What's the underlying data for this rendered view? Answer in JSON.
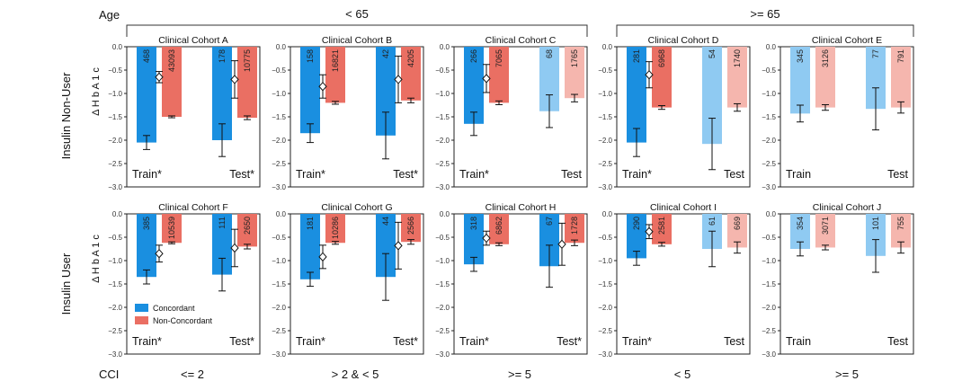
{
  "colors": {
    "concordant": "#1a8fe0",
    "concordant_faded": "#8fcaf2",
    "non_concordant": "#ea6f63",
    "non_concordant_faded": "#f5b6ae"
  },
  "chart_data": {
    "type": "bar",
    "age_label": "Age",
    "age_groups": [
      "< 65",
      ">= 65"
    ],
    "cci_label": "CCI",
    "cci_groups": [
      "<= 2",
      "> 2 & < 5",
      ">= 5",
      "< 5",
      ">= 5"
    ],
    "row_labels": [
      "Insulin Non-User",
      "Insulin User"
    ],
    "ylabel": "Δ H b A 1 c",
    "ylim": [
      -3.0,
      0.0
    ],
    "yticks": [
      "0.0",
      "−0.5",
      "−1.0",
      "−1.5",
      "−2.0",
      "−2.5",
      "−3.0"
    ],
    "legend": [
      "Concordant",
      "Non-Concordant"
    ],
    "panels": [
      {
        "title": "Clinical Cohort A",
        "splits": [
          {
            "label": "Train*",
            "significant": true,
            "concordant": {
              "value": -2.05,
              "err": 0.15,
              "n": "468"
            },
            "non_concordant": {
              "value": -1.5,
              "err": 0.02,
              "n": "43093"
            },
            "diff": {
              "value": -0.65,
              "err": 0.12
            }
          },
          {
            "label": "Test*",
            "significant": true,
            "concordant": {
              "value": -2.0,
              "err": 0.35,
              "n": "178"
            },
            "non_concordant": {
              "value": -1.52,
              "err": 0.04,
              "n": "10775"
            },
            "diff": {
              "value": -0.7,
              "err": 0.4
            }
          }
        ]
      },
      {
        "title": "Clinical Cohort B",
        "splits": [
          {
            "label": "Train*",
            "significant": true,
            "concordant": {
              "value": -1.85,
              "err": 0.2,
              "n": "158"
            },
            "non_concordant": {
              "value": -1.2,
              "err": 0.03,
              "n": "16821"
            },
            "diff": {
              "value": -0.85,
              "err": 0.25
            }
          },
          {
            "label": "Test*",
            "significant": true,
            "concordant": {
              "value": -1.9,
              "err": 0.5,
              "n": "42"
            },
            "non_concordant": {
              "value": -1.15,
              "err": 0.05,
              "n": "4205"
            },
            "diff": {
              "value": -0.7,
              "err": 0.5
            }
          }
        ]
      },
      {
        "title": "Clinical Cohort C",
        "splits": [
          {
            "label": "Train*",
            "significant": true,
            "concordant": {
              "value": -1.65,
              "err": 0.25,
              "n": "266"
            },
            "non_concordant": {
              "value": -1.2,
              "err": 0.04,
              "n": "7065"
            },
            "diff": {
              "value": -0.68,
              "err": 0.3
            }
          },
          {
            "label": "Test",
            "significant": false,
            "concordant": {
              "value": -1.38,
              "err": 0.35,
              "n": "68"
            },
            "non_concordant": {
              "value": -1.1,
              "err": 0.08,
              "n": "1765"
            }
          }
        ]
      },
      {
        "title": "Clinical Cohort D",
        "splits": [
          {
            "label": "Train*",
            "significant": true,
            "concordant": {
              "value": -2.05,
              "err": 0.3,
              "n": "281"
            },
            "non_concordant": {
              "value": -1.3,
              "err": 0.04,
              "n": "6968"
            },
            "diff": {
              "value": -0.6,
              "err": 0.28
            }
          },
          {
            "label": "Test",
            "significant": false,
            "concordant": {
              "value": -2.08,
              "err": 0.55,
              "n": "54"
            },
            "non_concordant": {
              "value": -1.3,
              "err": 0.08,
              "n": "1740"
            }
          }
        ]
      },
      {
        "title": "Clinical Cohort E",
        "splits": [
          {
            "label": "Train",
            "significant": false,
            "concordant": {
              "value": -1.43,
              "err": 0.18,
              "n": "345"
            },
            "non_concordant": {
              "value": -1.3,
              "err": 0.06,
              "n": "3126"
            }
          },
          {
            "label": "Test",
            "significant": false,
            "concordant": {
              "value": -1.33,
              "err": 0.45,
              "n": "77"
            },
            "non_concordant": {
              "value": -1.3,
              "err": 0.12,
              "n": "791"
            }
          }
        ]
      },
      {
        "title": "Clinical Cohort F",
        "splits": [
          {
            "label": "Train*",
            "significant": true,
            "concordant": {
              "value": -1.35,
              "err": 0.15,
              "n": "385"
            },
            "non_concordant": {
              "value": -0.62,
              "err": 0.02,
              "n": "10539"
            },
            "diff": {
              "value": -0.85,
              "err": 0.18
            }
          },
          {
            "label": "Test*",
            "significant": true,
            "concordant": {
              "value": -1.3,
              "err": 0.35,
              "n": "111"
            },
            "non_concordant": {
              "value": -0.7,
              "err": 0.05,
              "n": "2650"
            },
            "diff": {
              "value": -0.73,
              "err": 0.4
            }
          }
        ]
      },
      {
        "title": "Clinical Cohort G",
        "splits": [
          {
            "label": "Train*",
            "significant": true,
            "concordant": {
              "value": -1.4,
              "err": 0.15,
              "n": "181"
            },
            "non_concordant": {
              "value": -0.62,
              "err": 0.03,
              "n": "10286"
            },
            "diff": {
              "value": -0.92,
              "err": 0.25
            }
          },
          {
            "label": "Test*",
            "significant": true,
            "concordant": {
              "value": -1.35,
              "err": 0.5,
              "n": "44"
            },
            "non_concordant": {
              "value": -0.6,
              "err": 0.05,
              "n": "2566"
            },
            "diff": {
              "value": -0.68,
              "err": 0.5
            }
          }
        ]
      },
      {
        "title": "Clinical Cohort H",
        "splits": [
          {
            "label": "Train*",
            "significant": true,
            "concordant": {
              "value": -1.08,
              "err": 0.15,
              "n": "318"
            },
            "non_concordant": {
              "value": -0.65,
              "err": 0.03,
              "n": "6862"
            },
            "diff": {
              "value": -0.52,
              "err": 0.15
            }
          },
          {
            "label": "Test*",
            "significant": true,
            "concordant": {
              "value": -1.12,
              "err": 0.45,
              "n": "67"
            },
            "non_concordant": {
              "value": -0.62,
              "err": 0.06,
              "n": "1728"
            },
            "diff": {
              "value": -0.65,
              "err": 0.45
            }
          }
        ]
      },
      {
        "title": "Clinical Cohort I",
        "splits": [
          {
            "label": "Train*",
            "significant": true,
            "concordant": {
              "value": -0.95,
              "err": 0.15,
              "n": "290"
            },
            "non_concordant": {
              "value": -0.65,
              "err": 0.04,
              "n": "2581"
            },
            "diff": {
              "value": -0.38,
              "err": 0.15
            }
          },
          {
            "label": "Test",
            "significant": false,
            "concordant": {
              "value": -0.75,
              "err": 0.38,
              "n": "61"
            },
            "non_concordant": {
              "value": -0.72,
              "err": 0.12,
              "n": "669"
            }
          }
        ]
      },
      {
        "title": "Clinical Cohort J",
        "splits": [
          {
            "label": "Train",
            "significant": false,
            "concordant": {
              "value": -0.75,
              "err": 0.15,
              "n": "354"
            },
            "non_concordant": {
              "value": -0.72,
              "err": 0.05,
              "n": "3071"
            }
          },
          {
            "label": "Test",
            "significant": false,
            "concordant": {
              "value": -0.9,
              "err": 0.35,
              "n": "101"
            },
            "non_concordant": {
              "value": -0.72,
              "err": 0.12,
              "n": "755"
            }
          }
        ]
      }
    ]
  }
}
